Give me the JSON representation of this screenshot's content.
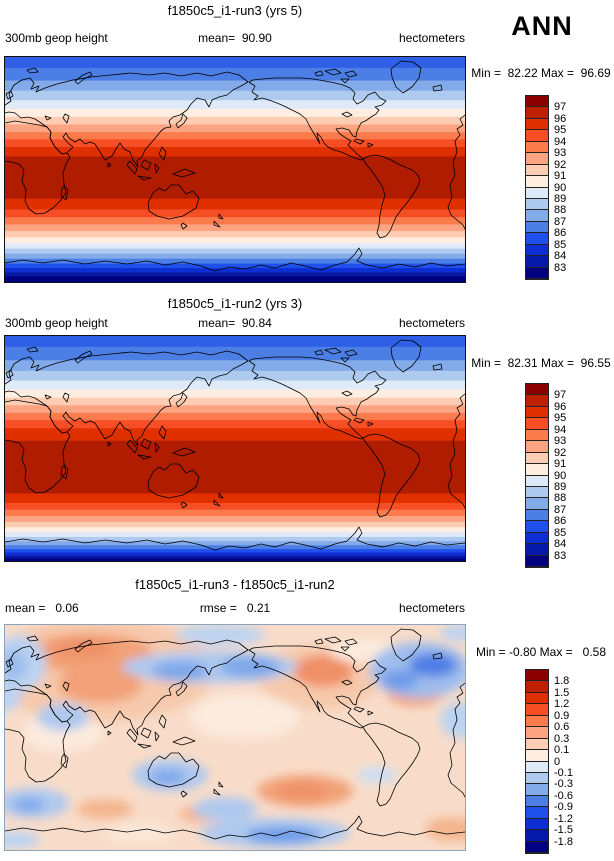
{
  "season": "ANN",
  "palette": [
    "#8B0000",
    "#BE2000",
    "#E13000",
    "#F74E26",
    "#FB7B4D",
    "#FCA382",
    "#FDCDB3",
    "#FEEEE1",
    "#DEEAF7",
    "#AECBEF",
    "#84ABE9",
    "#4C7FE5",
    "#2050EC",
    "#0D2ED3",
    "#0719A8",
    "#000080"
  ],
  "panels": [
    {
      "title": "f1850c5_i1-run3 (yrs 5)",
      "left_label": "300mb geop height",
      "center_label": "mean=  90.90",
      "right_label": "hectometers",
      "minmax": "Min =  82.22 Max =  96.69",
      "colorbar_labels": [
        "97",
        "96",
        "95",
        "94",
        "93",
        "92",
        "91",
        "90",
        "89",
        "88",
        "87",
        "86",
        "85",
        "84",
        "83"
      ]
    },
    {
      "title": "f1850c5_i1-run2 (yrs 3)",
      "left_label": "300mb geop height",
      "center_label": "mean=  90.84",
      "right_label": "hectometers",
      "minmax": "Min =  82.31 Max =  96.55",
      "colorbar_labels": [
        "97",
        "96",
        "95",
        "94",
        "93",
        "92",
        "91",
        "90",
        "89",
        "88",
        "87",
        "86",
        "85",
        "84",
        "83"
      ]
    },
    {
      "title": "f1850c5_i1-run3 - f1850c5_i1-run2",
      "left_label": "mean =   0.06",
      "center_label": "rmse =   0.21",
      "right_label": "hectometers",
      "minmax": "Min = -0.80 Max =   0.58",
      "colorbar_labels": [
        "1.8",
        "1.5",
        "1.2",
        "0.9",
        "0.6",
        "0.3",
        "0.1",
        "0",
        "-0.1",
        "-0.3",
        "-0.6",
        "-0.9",
        "-1.2",
        "-1.5",
        "-1.8"
      ]
    }
  ],
  "chart_data": [
    {
      "type": "heatmap",
      "title": "f1850c5_i1-run3 (yrs 5)",
      "variable": "300mb geop height",
      "season": "ANN",
      "units": "hectometers",
      "mean": 90.9,
      "min": 82.22,
      "max": 96.69,
      "contour_levels": [
        83,
        84,
        85,
        86,
        87,
        88,
        89,
        90,
        91,
        92,
        93,
        94,
        95,
        96,
        97
      ],
      "zonal_profile": {
        "lat": [
          90,
          70,
          60,
          50,
          40,
          30,
          20,
          0,
          -20,
          -30,
          -40,
          -50,
          -60,
          -70,
          -90
        ],
        "value": [
          84.5,
          86.5,
          88,
          90,
          92,
          94,
          95.5,
          96.5,
          95.5,
          93.5,
          91,
          88.5,
          86,
          84,
          82.5
        ]
      },
      "render_bands": [
        [
          0.048,
          "#2E5FE6"
        ],
        [
          0.105,
          "#4C7FE5"
        ],
        [
          0.15,
          "#84ABE9"
        ],
        [
          0.192,
          "#AECBEF"
        ],
        [
          0.23,
          "#DEEAF7"
        ],
        [
          0.266,
          "#FEEEE1"
        ],
        [
          0.3,
          "#FDCDB3"
        ],
        [
          0.334,
          "#FCA382"
        ],
        [
          0.366,
          "#FB7B4D"
        ],
        [
          0.4,
          "#F74E26"
        ],
        [
          0.442,
          "#E13000"
        ],
        [
          0.63,
          "#AF1C00"
        ],
        [
          0.678,
          "#E13000"
        ],
        [
          0.712,
          "#F74E26"
        ],
        [
          0.744,
          "#FB7B4D"
        ],
        [
          0.774,
          "#FCA382"
        ],
        [
          0.802,
          "#FDCDB3"
        ],
        [
          0.828,
          "#FEEEE1"
        ],
        [
          0.852,
          "#DEEAF7"
        ],
        [
          0.874,
          "#AECBEF"
        ],
        [
          0.896,
          "#84ABE9"
        ],
        [
          0.918,
          "#4C7FE5"
        ],
        [
          0.938,
          "#2050EC"
        ],
        [
          0.956,
          "#0D2ED3"
        ],
        [
          0.974,
          "#0719A8"
        ],
        [
          1.0,
          "#000080"
        ]
      ]
    },
    {
      "type": "heatmap",
      "title": "f1850c5_i1-run2 (yrs 3)",
      "variable": "300mb geop height",
      "season": "ANN",
      "units": "hectometers",
      "mean": 90.84,
      "min": 82.31,
      "max": 96.55,
      "contour_levels": [
        83,
        84,
        85,
        86,
        87,
        88,
        89,
        90,
        91,
        92,
        93,
        94,
        95,
        96,
        97
      ],
      "zonal_profile": {
        "lat": [
          90,
          70,
          60,
          50,
          40,
          30,
          20,
          0,
          -20,
          -30,
          -40,
          -50,
          -60,
          -70,
          -90
        ],
        "value": [
          84.5,
          86.5,
          88,
          90,
          92,
          94,
          95.5,
          96.5,
          95.8,
          94,
          91,
          88.5,
          86,
          84,
          82.5
        ]
      },
      "render_bands": [
        [
          0.048,
          "#2E5FE6"
        ],
        [
          0.108,
          "#4C7FE5"
        ],
        [
          0.155,
          "#84ABE9"
        ],
        [
          0.198,
          "#AECBEF"
        ],
        [
          0.238,
          "#DEEAF7"
        ],
        [
          0.274,
          "#FEEEE1"
        ],
        [
          0.308,
          "#FDCDB3"
        ],
        [
          0.342,
          "#FCA382"
        ],
        [
          0.374,
          "#FB7B4D"
        ],
        [
          0.41,
          "#F74E26"
        ],
        [
          0.465,
          "#E13000"
        ],
        [
          0.7,
          "#AF1C00"
        ],
        [
          0.742,
          "#E13000"
        ],
        [
          0.772,
          "#F74E26"
        ],
        [
          0.8,
          "#FB7B4D"
        ],
        [
          0.826,
          "#FCA382"
        ],
        [
          0.85,
          "#FDCDB3"
        ],
        [
          0.872,
          "#FEEEE1"
        ],
        [
          0.893,
          "#DEEAF7"
        ],
        [
          0.912,
          "#AECBEF"
        ],
        [
          0.93,
          "#84ABE9"
        ],
        [
          0.947,
          "#4C7FE5"
        ],
        [
          0.962,
          "#2050EC"
        ],
        [
          0.976,
          "#0D2ED3"
        ],
        [
          0.988,
          "#0719A8"
        ],
        [
          1.0,
          "#000080"
        ]
      ]
    },
    {
      "type": "heatmap",
      "title": "f1850c5_i1-run3 - f1850c5_i1-run2",
      "variable": "300mb geop height difference",
      "season": "ANN",
      "units": "hectometers",
      "mean": 0.06,
      "rmse": 0.21,
      "min": -0.8,
      "max": 0.58,
      "contour_levels": [
        -1.8,
        -1.5,
        -1.2,
        -0.9,
        -0.6,
        -0.3,
        -0.1,
        0,
        0.1,
        0.3,
        0.6,
        0.9,
        1.2,
        1.5,
        1.8
      ],
      "background": "#F8DCC9",
      "render_blobs": [
        [
          "#F6C9AC",
          95,
          45,
          115,
          52
        ],
        [
          "#F2A178",
          85,
          28,
          62,
          20
        ],
        [
          "#F2A178",
          95,
          60,
          42,
          18
        ],
        [
          "#EF9168",
          78,
          24,
          30,
          10
        ],
        [
          "#F6C9AC",
          315,
          52,
          62,
          32
        ],
        [
          "#F09066",
          318,
          46,
          30,
          16
        ],
        [
          "#F2A178",
          410,
          68,
          28,
          13
        ],
        [
          "#F2A178",
          300,
          166,
          48,
          16
        ],
        [
          "#EF9168",
          297,
          166,
          25,
          9
        ],
        [
          "#F4B58F",
          100,
          184,
          28,
          10
        ],
        [
          "#F4B58F",
          200,
          189,
          26,
          9
        ],
        [
          "#F4B58F",
          448,
          204,
          28,
          12
        ],
        [
          "#FCEBDE",
          240,
          92,
          55,
          22
        ],
        [
          "#FCEBDE",
          58,
          108,
          40,
          18
        ],
        [
          "#FCEBDE",
          360,
          26,
          35,
          12
        ],
        [
          "#FBE7D8",
          135,
          208,
          35,
          10
        ],
        [
          "#BBD3F1",
          15,
          38,
          26,
          28
        ],
        [
          "#9FBDED",
          8,
          40,
          14,
          16
        ],
        [
          "#BBD3F1",
          0,
          72,
          16,
          14
        ],
        [
          "#AFC9EF",
          58,
          92,
          26,
          14
        ],
        [
          "#BBD3F1",
          215,
          10,
          45,
          10
        ],
        [
          "#AFC9EF",
          205,
          42,
          88,
          16
        ],
        [
          "#7FA8EA",
          175,
          46,
          28,
          10
        ],
        [
          "#7FA8EA",
          245,
          42,
          30,
          11
        ],
        [
          "#9FBDED",
          415,
          45,
          50,
          28
        ],
        [
          "#4F7FE6",
          428,
          40,
          24,
          12
        ],
        [
          "#6E9BE9",
          395,
          55,
          18,
          10
        ],
        [
          "#BBD3F1",
          455,
          95,
          20,
          18
        ],
        [
          "#CCDFF5",
          372,
          150,
          20,
          8
        ],
        [
          "#AFC9EF",
          165,
          150,
          38,
          16
        ],
        [
          "#7FA8EA",
          163,
          152,
          18,
          8
        ],
        [
          "#AFC9EF",
          220,
          184,
          32,
          12
        ],
        [
          "#AFC9EF",
          28,
          178,
          36,
          15
        ],
        [
          "#7FA8EA",
          24,
          180,
          16,
          7
        ],
        [
          "#AFC9EF",
          270,
          208,
          75,
          15
        ],
        [
          "#6E9BE9",
          278,
          210,
          38,
          8
        ],
        [
          "#BBD3F1",
          10,
          215,
          25,
          8
        ],
        [
          "#BBD3F1",
          455,
          8,
          20,
          8
        ]
      ]
    }
  ]
}
